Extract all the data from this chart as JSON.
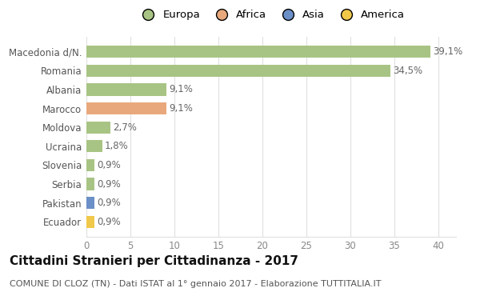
{
  "categories": [
    "Macedonia d/N.",
    "Romania",
    "Albania",
    "Marocco",
    "Moldova",
    "Ucraina",
    "Slovenia",
    "Serbia",
    "Pakistan",
    "Ecuador"
  ],
  "values": [
    39.1,
    34.5,
    9.1,
    9.1,
    2.7,
    1.8,
    0.9,
    0.9,
    0.9,
    0.9
  ],
  "labels": [
    "39,1%",
    "34,5%",
    "9,1%",
    "9,1%",
    "2,7%",
    "1,8%",
    "0,9%",
    "0,9%",
    "0,9%",
    "0,9%"
  ],
  "colors": [
    "#a8c484",
    "#a8c484",
    "#a8c484",
    "#e8a87c",
    "#a8c484",
    "#a8c484",
    "#a8c484",
    "#a8c484",
    "#6b8fc7",
    "#f0c84a"
  ],
  "legend_labels": [
    "Europa",
    "Africa",
    "Asia",
    "America"
  ],
  "legend_colors": [
    "#a8c484",
    "#e8a87c",
    "#6b8fc7",
    "#f0c84a"
  ],
  "title": "Cittadini Stranieri per Cittadinanza - 2017",
  "subtitle": "COMUNE DI CLOZ (TN) - Dati ISTAT al 1° gennaio 2017 - Elaborazione TUTTITALIA.IT",
  "xlim": [
    0,
    42
  ],
  "xticks": [
    0,
    5,
    10,
    15,
    20,
    25,
    30,
    35,
    40
  ],
  "background_color": "#ffffff",
  "grid_color": "#e0e0e0",
  "title_fontsize": 11,
  "subtitle_fontsize": 8,
  "bar_height": 0.65,
  "label_fontsize": 8.5,
  "tick_fontsize": 8.5,
  "legend_fontsize": 9.5
}
